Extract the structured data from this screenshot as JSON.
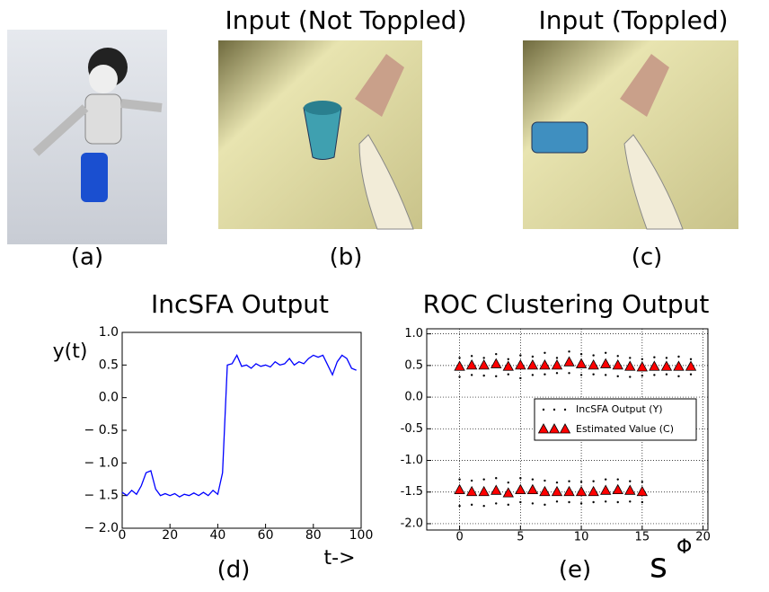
{
  "panels": [
    {
      "caption": "(a)"
    },
    {
      "title": "Input (Not Toppled)",
      "caption": "(b)"
    },
    {
      "title": "Input (Toppled)",
      "caption": "(c)"
    }
  ],
  "chart_data": [
    {
      "type": "line",
      "title": "IncSFA Output",
      "ylabel": "y(t)",
      "xlabel": "t->",
      "caption": "(d)",
      "x": [
        0,
        2,
        4,
        6,
        8,
        10,
        12,
        14,
        16,
        18,
        20,
        22,
        24,
        26,
        28,
        30,
        32,
        34,
        36,
        38,
        40,
        42,
        44,
        46,
        48,
        50,
        52,
        54,
        56,
        58,
        60,
        62,
        64,
        66,
        68,
        70,
        72,
        74,
        76,
        78,
        80,
        82,
        84,
        86,
        88,
        90,
        92,
        94,
        96,
        98
      ],
      "series": [
        {
          "color": "#0000ff",
          "values": [
            -1.45,
            -1.5,
            -1.42,
            -1.48,
            -1.35,
            -1.15,
            -1.12,
            -1.4,
            -1.5,
            -1.47,
            -1.5,
            -1.47,
            -1.52,
            -1.48,
            -1.5,
            -1.46,
            -1.5,
            -1.45,
            -1.5,
            -1.42,
            -1.48,
            -1.15,
            0.5,
            0.52,
            0.65,
            0.48,
            0.5,
            0.45,
            0.52,
            0.48,
            0.5,
            0.47,
            0.55,
            0.5,
            0.52,
            0.6,
            0.5,
            0.55,
            0.52,
            0.6,
            0.65,
            0.62,
            0.65,
            0.5,
            0.35,
            0.55,
            0.65,
            0.6,
            0.45,
            0.42
          ]
        }
      ],
      "xlim": [
        0,
        100
      ],
      "ylim": [
        -2,
        1
      ],
      "xticks": [
        0,
        20,
        40,
        60,
        80,
        100
      ],
      "yticks": [
        {
          "value": 1,
          "label": "1.0"
        },
        0.5,
        {
          "value": 0,
          "label": "0.0"
        },
        {
          "value": -0.5,
          "label": "− 0.5"
        },
        {
          "value": -1,
          "label": "− 1.0"
        },
        {
          "value": -1.5,
          "label": "− 1.5"
        },
        {
          "value": -2,
          "label": "− 2.0"
        }
      ],
      "grid": false
    },
    {
      "type": "scatter",
      "title": "ROC Clustering Output",
      "xlabel": "s",
      "xlabel_superscript": "Φ",
      "caption": "(e)",
      "series": [
        {
          "name": "IncSFA Output (Y)",
          "color": "#000000",
          "marker": "dot",
          "x": [
            0,
            0,
            1,
            1,
            2,
            2,
            3,
            3,
            4,
            4,
            5,
            5,
            6,
            6,
            7,
            7,
            8,
            8,
            9,
            9,
            10,
            10,
            11,
            11,
            12,
            12,
            13,
            13,
            14,
            14,
            15,
            15,
            16,
            16,
            17,
            17,
            18,
            18,
            19,
            19,
            0,
            0,
            1,
            1,
            2,
            2,
            3,
            3,
            4,
            4,
            5,
            5,
            6,
            6,
            7,
            7,
            8,
            8,
            9,
            9,
            10,
            10,
            11,
            11,
            12,
            12,
            13,
            13,
            14,
            14,
            15,
            15
          ],
          "y": [
            0.62,
            0.32,
            0.65,
            0.35,
            0.62,
            0.34,
            0.68,
            0.33,
            0.6,
            0.36,
            0.66,
            0.3,
            0.64,
            0.35,
            0.7,
            0.36,
            0.62,
            0.38,
            0.72,
            0.38,
            0.68,
            0.35,
            0.66,
            0.36,
            0.7,
            0.35,
            0.65,
            0.33,
            0.62,
            0.32,
            0.6,
            0.34,
            0.63,
            0.35,
            0.62,
            0.36,
            0.64,
            0.33,
            0.6,
            0.36,
            -1.3,
            -1.72,
            -1.32,
            -1.7,
            -1.3,
            -1.72,
            -1.28,
            -1.68,
            -1.35,
            -1.7,
            -1.28,
            -1.66,
            -1.3,
            -1.68,
            -1.32,
            -1.7,
            -1.35,
            -1.65,
            -1.33,
            -1.66,
            -1.34,
            -1.68,
            -1.33,
            -1.66,
            -1.3,
            -1.65,
            -1.3,
            -1.66,
            -1.33,
            -1.65,
            -1.34,
            -1.66
          ]
        },
        {
          "name": "Estimated Value (C)",
          "color": "#ff0000",
          "marker": "triangle",
          "x": [
            0,
            1,
            2,
            3,
            4,
            5,
            6,
            7,
            8,
            9,
            10,
            11,
            12,
            13,
            14,
            15,
            16,
            17,
            18,
            19,
            0,
            1,
            2,
            3,
            4,
            5,
            6,
            7,
            8,
            9,
            10,
            11,
            12,
            13,
            14,
            15
          ],
          "y": [
            0.48,
            0.5,
            0.5,
            0.52,
            0.48,
            0.5,
            0.5,
            0.5,
            0.5,
            0.55,
            0.52,
            0.5,
            0.52,
            0.5,
            0.48,
            0.47,
            0.48,
            0.48,
            0.48,
            0.48,
            -1.47,
            -1.5,
            -1.5,
            -1.48,
            -1.52,
            -1.47,
            -1.47,
            -1.5,
            -1.5,
            -1.5,
            -1.5,
            -1.5,
            -1.48,
            -1.47,
            -1.48,
            -1.5
          ]
        }
      ],
      "xlim": [
        -2.7,
        20.4
      ],
      "ylim": [
        -2.1,
        1.08
      ],
      "xticks": [
        0,
        5,
        10,
        15,
        20
      ],
      "yticks": [
        {
          "value": 1,
          "label": "1.0"
        },
        0.5,
        {
          "value": 0,
          "label": "0.0"
        },
        -0.5,
        {
          "value": -1,
          "label": "-1.0"
        },
        -1.5,
        {
          "value": -2,
          "label": "-2.0"
        }
      ],
      "grid": true,
      "legend": "center-right"
    }
  ]
}
